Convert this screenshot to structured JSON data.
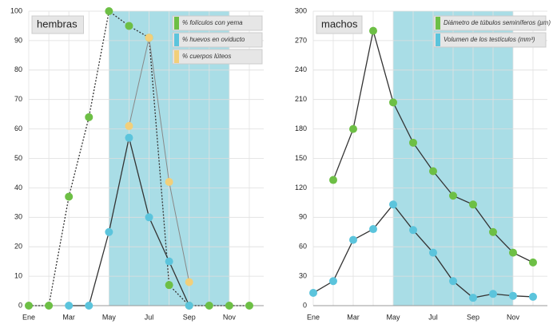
{
  "chart_data": [
    {
      "type": "line",
      "title": "hembras",
      "categories": [
        "Ene",
        null,
        "Mar",
        null,
        "May",
        null,
        "Jul",
        null,
        "Sep",
        null,
        "Nov",
        null
      ],
      "series": [
        {
          "name": "% folículos con yema",
          "color": "#6dbf45",
          "dash": true,
          "values": [
            0,
            0,
            37,
            64,
            100,
            95,
            91,
            7,
            0,
            0,
            0,
            0
          ]
        },
        {
          "name": "% huevos en oviducto",
          "color": "#5bc4dc",
          "values": [
            null,
            null,
            0,
            0,
            25,
            57,
            30,
            15,
            0,
            null,
            null,
            null
          ]
        },
        {
          "name": "% cuerpos lúteos",
          "color": "#f2cf7a",
          "values": [
            null,
            null,
            null,
            null,
            null,
            61,
            91,
            42,
            8,
            null,
            null,
            null
          ]
        }
      ],
      "ylim": [
        0,
        100
      ],
      "yticks": [
        0,
        10,
        20,
        30,
        40,
        50,
        60,
        70,
        80,
        90,
        100
      ],
      "grid": true,
      "legend": "top-right",
      "shaded_span": [
        4,
        10
      ]
    },
    {
      "type": "line",
      "title": "machos",
      "categories": [
        "Ene",
        null,
        "Mar",
        null,
        "May",
        null,
        "Jul",
        null,
        "Sep",
        null,
        "Nov",
        null
      ],
      "series": [
        {
          "name": "Diámetro de túbulos seminíferos (µm)",
          "color": "#6dbf45",
          "values": [
            null,
            128,
            180,
            280,
            207,
            166,
            137,
            112,
            103,
            75,
            54,
            44
          ]
        },
        {
          "name": "Volumen de los testículos (mm³)",
          "color": "#5bc4dc",
          "values": [
            13,
            25,
            67,
            78,
            103,
            77,
            54,
            25,
            8,
            12,
            10,
            9
          ]
        }
      ],
      "ylim": [
        0,
        300
      ],
      "yticks": [
        0,
        30,
        60,
        90,
        120,
        150,
        180,
        210,
        240,
        270,
        300
      ],
      "grid": true,
      "legend": "top-right",
      "shaded_span": [
        4,
        10
      ]
    }
  ]
}
